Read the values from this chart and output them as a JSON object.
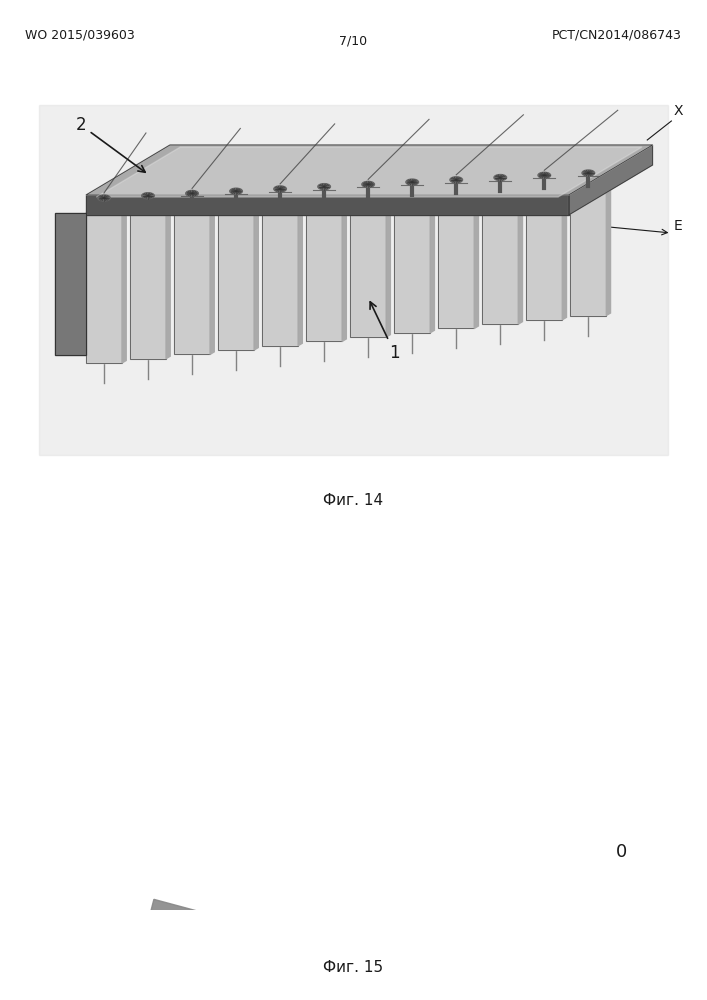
{
  "header_left": "WO 2015/039603",
  "header_right": "PCT/CN2014/086743",
  "header_center": "7/10",
  "fig14_caption": "Фиг. 14",
  "fig15_caption": "Фиг. 15",
  "bg_color": "#ffffff",
  "text_color": "#1a1a1a",
  "header_fontsize": 9,
  "caption_fontsize": 11,
  "arc_color": "#888888",
  "arc_highlight": "#cccccc",
  "emitter_disc_color": "#555555",
  "emitter_stem_color": "#444444",
  "emitter_spoke_color": "#222222",
  "fig15_bg": "#e8e8e8",
  "plate_face": "#555555",
  "plate_top": "#aaaaaa",
  "plate_side": "#333333",
  "module_face": "#bbbbbb",
  "module_side": "#888888",
  "module_top": "#999999"
}
